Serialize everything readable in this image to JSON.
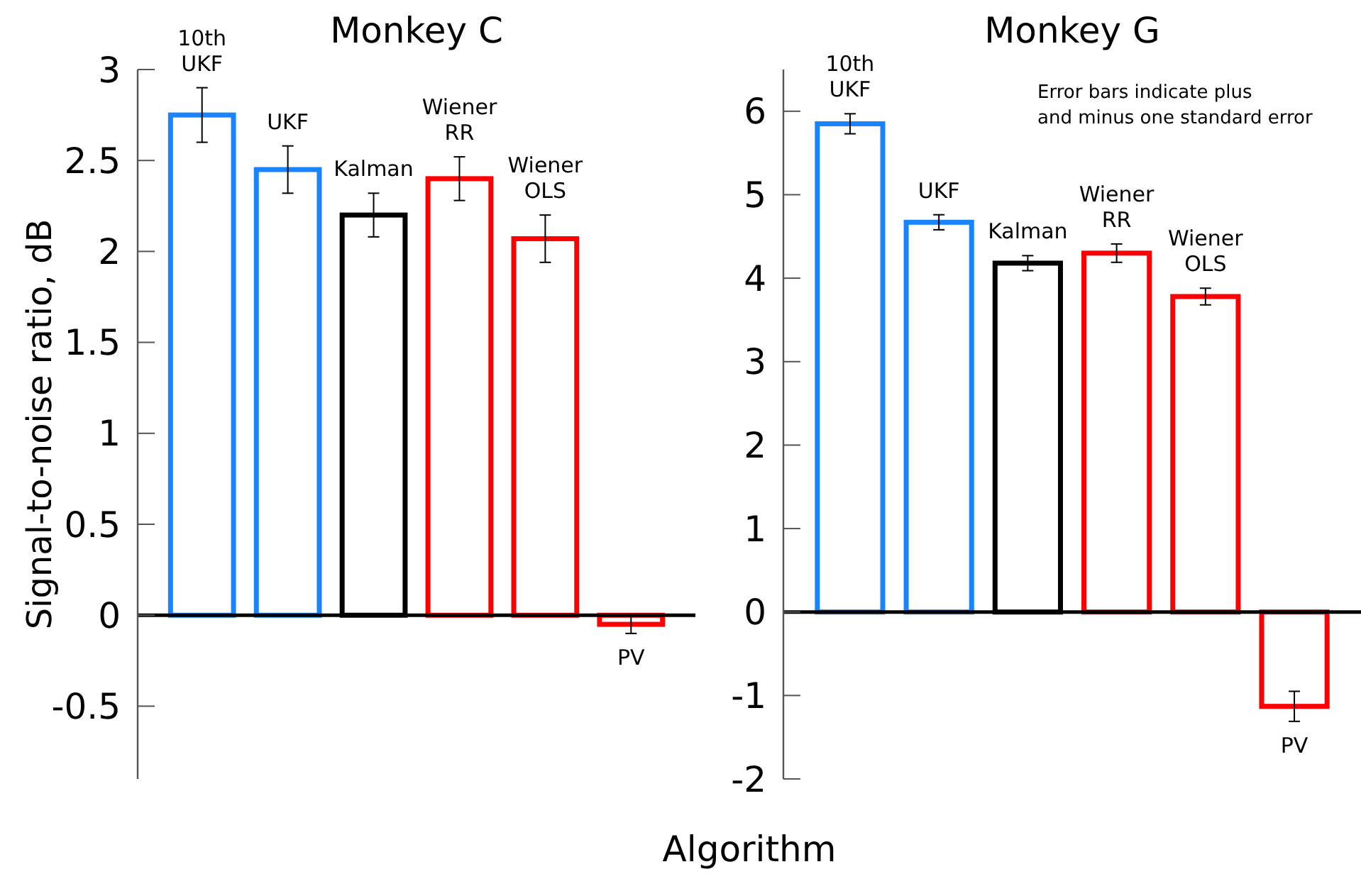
{
  "chart_data": [
    {
      "type": "bar",
      "title": "Monkey C",
      "ylabel": "Signal-to-noise ratio, dB",
      "xlabel": "Algorithm",
      "categories": [
        "10th\nUKF",
        "UKF",
        "Kalman",
        "Wiener\nRR",
        "Wiener\nOLS",
        "PV"
      ],
      "values": [
        2.75,
        2.45,
        2.2,
        2.4,
        2.07,
        -0.05
      ],
      "errors": [
        0.15,
        0.13,
        0.12,
        0.12,
        0.13,
        0.05
      ],
      "colors": [
        "#1a84ff",
        "#1a84ff",
        "#000000",
        "#ff0000",
        "#ff0000",
        "#ff0000"
      ],
      "ylim": [
        -0.9,
        3
      ],
      "yticks": [
        -0.5,
        0,
        0.5,
        1,
        1.5,
        2,
        2.5,
        3
      ]
    },
    {
      "type": "bar",
      "title": "Monkey G",
      "categories": [
        "10th\nUKF",
        "UKF",
        "Kalman",
        "Wiener\nRR",
        "Wiener\nOLS",
        "PV"
      ],
      "values": [
        5.85,
        4.67,
        4.18,
        4.3,
        3.78,
        -1.13
      ],
      "errors": [
        0.12,
        0.09,
        0.09,
        0.11,
        0.1,
        0.18
      ],
      "colors": [
        "#1a84ff",
        "#1a84ff",
        "#000000",
        "#ff0000",
        "#ff0000",
        "#ff0000"
      ],
      "ylim": [
        -2,
        6.5
      ],
      "yticks": [
        -2,
        -1,
        0,
        1,
        2,
        3,
        4,
        5,
        6
      ],
      "annotations": [
        "Error bars indicate plus\nand minus one standard error"
      ]
    }
  ]
}
